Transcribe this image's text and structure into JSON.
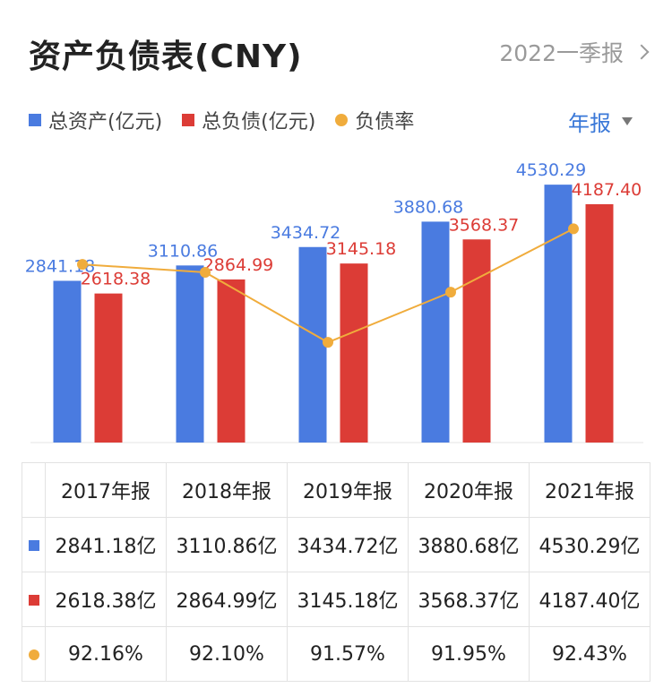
{
  "header": {
    "title": "资产负债表(CNY)",
    "period_label": "2022一季报"
  },
  "legend": {
    "assets_label": "总资产(亿元)",
    "liabilities_label": "总负债(亿元)",
    "ratio_label": "负债率"
  },
  "range": {
    "selected": "年报"
  },
  "colors": {
    "assets": "#4a7be0",
    "liabilities": "#dc3c36",
    "ratio": "#f0ac3c",
    "value_link": "#3a78d8"
  },
  "chart_data": {
    "type": "bar",
    "categories": [
      "2017年报",
      "2018年报",
      "2019年报",
      "2020年报",
      "2021年报"
    ],
    "series": [
      {
        "name": "总资产(亿元)",
        "values": [
          2841.18,
          3110.86,
          3434.72,
          3880.68,
          4530.29
        ],
        "labels": [
          "2841.18",
          "3110.86",
          "3434.72",
          "3880.68",
          "4530.29"
        ]
      },
      {
        "name": "总负债(亿元)",
        "values": [
          2618.38,
          2864.99,
          3145.18,
          3568.37,
          4187.4
        ],
        "labels": [
          "2618.38",
          "2864.99",
          "3145.18",
          "3568.37",
          "4187.40"
        ]
      }
    ],
    "line_series": {
      "name": "负债率",
      "values": [
        92.16,
        92.1,
        91.57,
        91.95,
        92.43
      ],
      "unit": "%"
    },
    "ylim": [
      0,
      4800
    ],
    "ratio_ylim": [
      91.3,
      92.5
    ],
    "grid": false
  },
  "table": {
    "years": [
      "2017年报",
      "2018年报",
      "2019年报",
      "2020年报",
      "2021年报"
    ],
    "assets": [
      "2841.18亿",
      "3110.86亿",
      "3434.72亿",
      "3880.68亿",
      "4530.29亿"
    ],
    "liabilities": [
      "2618.38亿",
      "2864.99亿",
      "3145.18亿",
      "3568.37亿",
      "4187.40亿"
    ],
    "ratio": [
      "92.16%",
      "92.10%",
      "91.57%",
      "91.95%",
      "92.43%"
    ]
  }
}
